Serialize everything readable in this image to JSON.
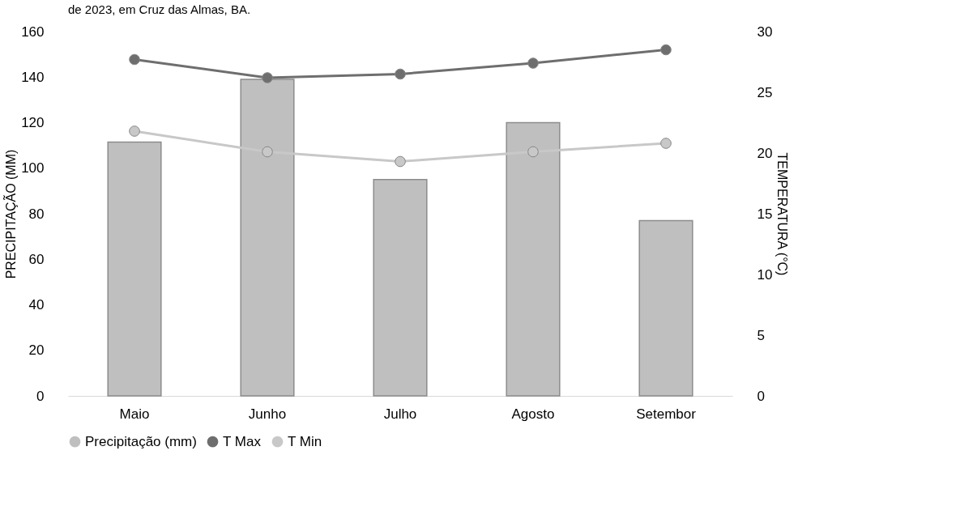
{
  "chart_data": {
    "type": "bar",
    "title": "de 2023, em Cruz das Almas, BA.",
    "categories": [
      "Maio",
      "Junho",
      "Julho",
      "Agosto",
      "Setembor"
    ],
    "series": [
      {
        "name": "Precipitação (mm)",
        "color": "#bfbfbf",
        "values": [
          111.5,
          139,
          95,
          120,
          77
        ]
      },
      {
        "name": "T Max",
        "type": "line",
        "axis": "y2",
        "color": "#6e6e6e",
        "values": [
          27.7,
          26.2,
          26.5,
          27.4,
          28.5
        ]
      },
      {
        "name": "T Min",
        "type": "line",
        "axis": "y2",
        "color": "#c8c8c8",
        "values": [
          21.8,
          20.1,
          19.3,
          20.1,
          20.8
        ]
      }
    ],
    "ylabel": "PRECIPITAÇÃO (MM)",
    "y2label": "TEMPERATURA  (°C)",
    "ylim": [
      0,
      160
    ],
    "yticks": [
      0,
      20,
      40,
      60,
      80,
      100,
      120,
      140,
      160
    ],
    "y2lim": [
      0,
      30
    ],
    "y2ticks": [
      0,
      5,
      10,
      15,
      20,
      25,
      30
    ],
    "grid": false,
    "legend": "bottom",
    "marker": "circle",
    "line_style": "solid"
  }
}
